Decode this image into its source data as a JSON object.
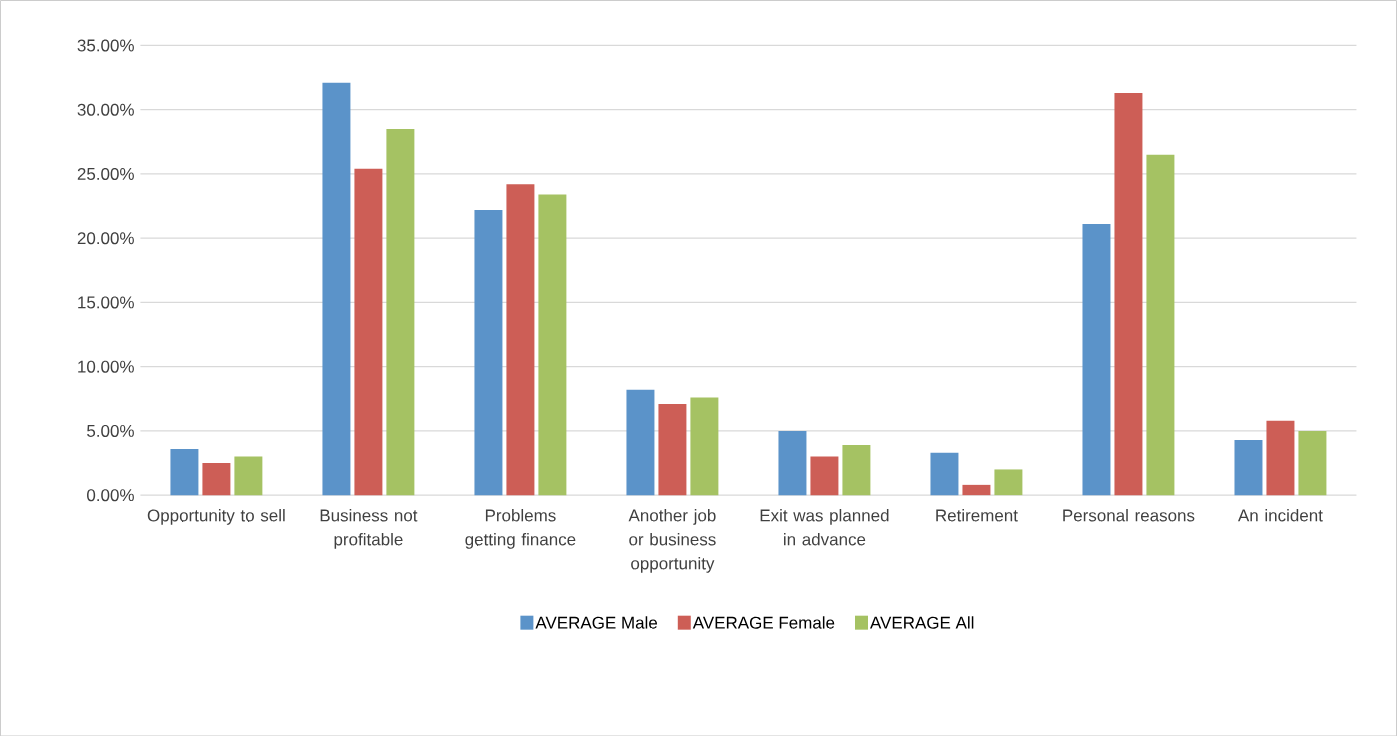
{
  "chart_data": {
    "type": "bar",
    "categories": [
      "Opportunity to sell",
      "Business not profitable",
      "Problems getting finance",
      "Another job or business opportunity",
      "Exit was planned in advance",
      "Retirement",
      "Personal reasons",
      "An incident"
    ],
    "series": [
      {
        "name": "AVERAGE Male",
        "color": "#5b93c9",
        "values": [
          3.6,
          32.1,
          22.2,
          8.2,
          5.0,
          3.3,
          21.1,
          4.3
        ]
      },
      {
        "name": "AVERAGE Female",
        "color": "#cd5e56",
        "values": [
          2.5,
          25.4,
          24.2,
          7.1,
          3.0,
          0.8,
          31.3,
          5.8
        ]
      },
      {
        "name": "AVERAGE All",
        "color": "#a5c263",
        "values": [
          3.0,
          28.5,
          23.4,
          7.6,
          3.9,
          2.0,
          26.5,
          5.0
        ]
      }
    ],
    "ylim": [
      0,
      35
    ],
    "yticks": [
      {
        "value": 0,
        "label": "0.00%"
      },
      {
        "value": 5,
        "label": "5.00%"
      },
      {
        "value": 10,
        "label": "10.00%"
      },
      {
        "value": 15,
        "label": "15.00%"
      },
      {
        "value": 20,
        "label": "20.00%"
      },
      {
        "value": 25,
        "label": "25.00%"
      },
      {
        "value": 30,
        "label": "30.00%"
      },
      {
        "value": 35,
        "label": "35.00%"
      }
    ],
    "grid": "y",
    "legend": "bottom"
  }
}
